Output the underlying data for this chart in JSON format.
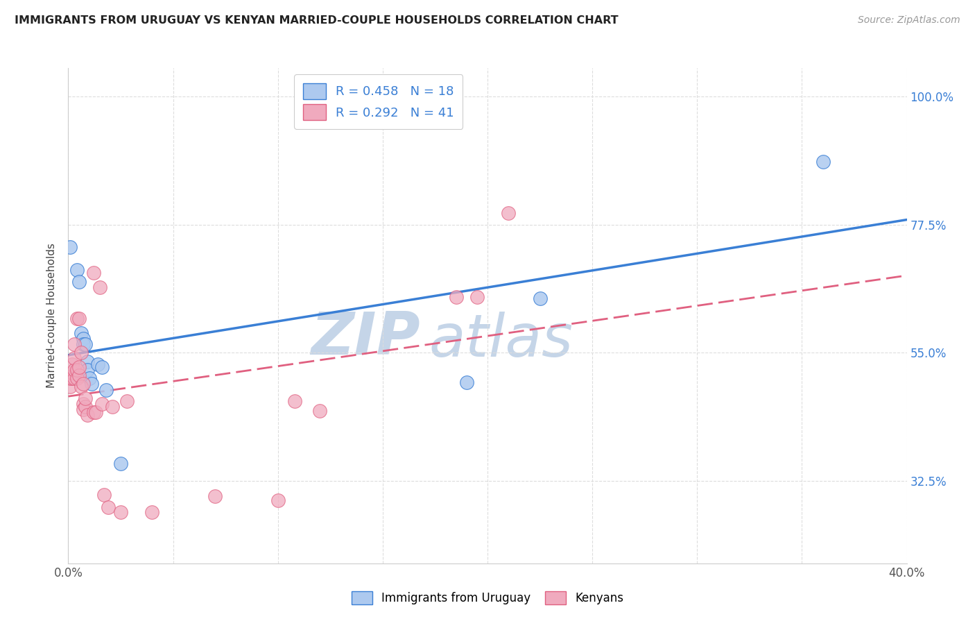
{
  "title": "IMMIGRANTS FROM URUGUAY VS KENYAN MARRIED-COUPLE HOUSEHOLDS CORRELATION CHART",
  "source": "Source: ZipAtlas.com",
  "ylabel": "Married-couple Households",
  "ytick_labels": [
    "32.5%",
    "55.0%",
    "77.5%",
    "100.0%"
  ],
  "ytick_values": [
    0.325,
    0.55,
    0.775,
    1.0
  ],
  "xmin": 0.0,
  "xmax": 0.4,
  "ymin": 0.18,
  "ymax": 1.05,
  "legend_r1": "R = 0.458",
  "legend_n1": "N = 18",
  "legend_r2": "R = 0.292",
  "legend_n2": "N = 41",
  "legend_label1": "Immigrants from Uruguay",
  "legend_label2": "Kenyans",
  "color_blue": "#adc9ef",
  "color_pink": "#f0aabe",
  "line_blue": "#3a7fd5",
  "line_pink": "#e06080",
  "watermark_zip_color": "#c5d5e8",
  "watermark_atlas_color": "#c5d5e8",
  "background_color": "#ffffff",
  "grid_color": "#dddddd",
  "uruguay_points": [
    [
      0.001,
      0.735
    ],
    [
      0.004,
      0.695
    ],
    [
      0.005,
      0.675
    ],
    [
      0.006,
      0.585
    ],
    [
      0.007,
      0.575
    ],
    [
      0.007,
      0.565
    ],
    [
      0.008,
      0.565
    ],
    [
      0.009,
      0.535
    ],
    [
      0.009,
      0.52
    ],
    [
      0.01,
      0.505
    ],
    [
      0.011,
      0.495
    ],
    [
      0.014,
      0.53
    ],
    [
      0.016,
      0.525
    ],
    [
      0.018,
      0.485
    ],
    [
      0.025,
      0.355
    ],
    [
      0.19,
      0.498
    ],
    [
      0.225,
      0.645
    ],
    [
      0.36,
      0.885
    ]
  ],
  "kenya_points": [
    [
      0.001,
      0.49
    ],
    [
      0.001,
      0.505
    ],
    [
      0.002,
      0.505
    ],
    [
      0.002,
      0.515
    ],
    [
      0.002,
      0.53
    ],
    [
      0.003,
      0.505
    ],
    [
      0.003,
      0.52
    ],
    [
      0.003,
      0.54
    ],
    [
      0.003,
      0.565
    ],
    [
      0.004,
      0.505
    ],
    [
      0.004,
      0.52
    ],
    [
      0.004,
      0.61
    ],
    [
      0.005,
      0.51
    ],
    [
      0.005,
      0.525
    ],
    [
      0.005,
      0.61
    ],
    [
      0.006,
      0.49
    ],
    [
      0.006,
      0.55
    ],
    [
      0.007,
      0.495
    ],
    [
      0.007,
      0.46
    ],
    [
      0.007,
      0.45
    ],
    [
      0.008,
      0.455
    ],
    [
      0.008,
      0.47
    ],
    [
      0.009,
      0.44
    ],
    [
      0.012,
      0.69
    ],
    [
      0.012,
      0.445
    ],
    [
      0.013,
      0.445
    ],
    [
      0.015,
      0.665
    ],
    [
      0.016,
      0.46
    ],
    [
      0.017,
      0.3
    ],
    [
      0.019,
      0.278
    ],
    [
      0.021,
      0.455
    ],
    [
      0.025,
      0.27
    ],
    [
      0.028,
      0.465
    ],
    [
      0.04,
      0.27
    ],
    [
      0.07,
      0.298
    ],
    [
      0.1,
      0.29
    ],
    [
      0.108,
      0.465
    ],
    [
      0.12,
      0.448
    ],
    [
      0.185,
      0.648
    ],
    [
      0.195,
      0.648
    ],
    [
      0.21,
      0.795
    ]
  ]
}
